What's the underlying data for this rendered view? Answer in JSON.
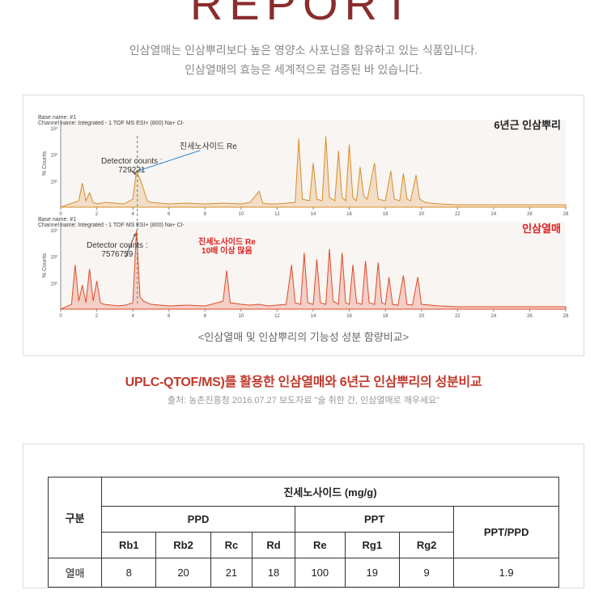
{
  "title_fragment": "REPORT",
  "intro_line1": "인삼열매는 인삼뿌리보다 높은 영양소 사포닌을 함유하고 있는 식품입니다.",
  "intro_line2": "인삼열매의 효능은 세계적으로 검증된 바 있습니다.",
  "chart": {
    "caption": "<인삼열매 및 인삼뿌리의 기능성 성분 함량비교>",
    "top": {
      "sample": "6년근 인삼뿌리",
      "detector_label": "Detector counts :",
      "detector_value": "729221",
      "anno": "진세노사이드 Re",
      "color": "#d98c2b",
      "series": [
        [
          0,
          0
        ],
        [
          1,
          8
        ],
        [
          1.2,
          30
        ],
        [
          1.4,
          8
        ],
        [
          1.6,
          18
        ],
        [
          1.8,
          6
        ],
        [
          2,
          4
        ],
        [
          2.5,
          6
        ],
        [
          3,
          5
        ],
        [
          3.5,
          4
        ],
        [
          4,
          10
        ],
        [
          4.2,
          45
        ],
        [
          4.4,
          35
        ],
        [
          4.6,
          22
        ],
        [
          4.8,
          8
        ],
        [
          5,
          6
        ],
        [
          5.5,
          5
        ],
        [
          6,
          4
        ],
        [
          7,
          5
        ],
        [
          8,
          4
        ],
        [
          9,
          5
        ],
        [
          10,
          4
        ],
        [
          10.5,
          6
        ],
        [
          11,
          20
        ],
        [
          11.2,
          5
        ],
        [
          11.5,
          4
        ],
        [
          12,
          4
        ],
        [
          12.5,
          5
        ],
        [
          13,
          6
        ],
        [
          13.2,
          85
        ],
        [
          13.4,
          10
        ],
        [
          13.8,
          8
        ],
        [
          14,
          55
        ],
        [
          14.2,
          10
        ],
        [
          14.5,
          8
        ],
        [
          14.7,
          88
        ],
        [
          14.9,
          12
        ],
        [
          15.2,
          8
        ],
        [
          15.4,
          70
        ],
        [
          15.6,
          12
        ],
        [
          15.8,
          8
        ],
        [
          16,
          78
        ],
        [
          16.2,
          12
        ],
        [
          16.4,
          8
        ],
        [
          16.6,
          50
        ],
        [
          16.8,
          14
        ],
        [
          17,
          10
        ],
        [
          17.4,
          55
        ],
        [
          17.6,
          10
        ],
        [
          18,
          8
        ],
        [
          18.3,
          45
        ],
        [
          18.5,
          10
        ],
        [
          18.8,
          8
        ],
        [
          19,
          42
        ],
        [
          19.2,
          10
        ],
        [
          19.4,
          8
        ],
        [
          19.7,
          40
        ],
        [
          19.9,
          10
        ],
        [
          20.2,
          6
        ],
        [
          20.5,
          5
        ],
        [
          21,
          4
        ],
        [
          22,
          3
        ],
        [
          24,
          3
        ],
        [
          26,
          3
        ],
        [
          28,
          3
        ]
      ]
    },
    "bottom": {
      "sample": "인삼열매",
      "detector_label": "Detector counts :",
      "detector_value": "7576759",
      "anno1": "진세노사이드 Re",
      "anno2": "10배 이상 많음",
      "color": "#e04a2a",
      "series": [
        [
          0,
          0
        ],
        [
          0.6,
          6
        ],
        [
          0.8,
          55
        ],
        [
          1,
          10
        ],
        [
          1.2,
          30
        ],
        [
          1.4,
          8
        ],
        [
          1.6,
          50
        ],
        [
          1.8,
          10
        ],
        [
          2,
          35
        ],
        [
          2.2,
          8
        ],
        [
          2.4,
          6
        ],
        [
          2.8,
          5
        ],
        [
          3.2,
          4
        ],
        [
          3.6,
          5
        ],
        [
          4,
          8
        ],
        [
          4.2,
          98
        ],
        [
          4.4,
          15
        ],
        [
          4.6,
          10
        ],
        [
          5,
          6
        ],
        [
          5.5,
          5
        ],
        [
          6,
          4
        ],
        [
          7,
          5
        ],
        [
          8,
          4
        ],
        [
          9,
          10
        ],
        [
          9.2,
          48
        ],
        [
          9.4,
          8
        ],
        [
          10,
          6
        ],
        [
          10.5,
          5
        ],
        [
          11,
          6
        ],
        [
          11.5,
          4
        ],
        [
          12,
          5
        ],
        [
          12.5,
          6
        ],
        [
          12.8,
          55
        ],
        [
          13,
          8
        ],
        [
          13.3,
          6
        ],
        [
          13.5,
          70
        ],
        [
          13.7,
          8
        ],
        [
          14,
          6
        ],
        [
          14.2,
          62
        ],
        [
          14.4,
          8
        ],
        [
          14.7,
          6
        ],
        [
          14.9,
          75
        ],
        [
          15.1,
          10
        ],
        [
          15.4,
          6
        ],
        [
          15.6,
          70
        ],
        [
          15.8,
          8
        ],
        [
          16,
          6
        ],
        [
          16.2,
          55
        ],
        [
          16.4,
          8
        ],
        [
          16.7,
          6
        ],
        [
          16.9,
          60
        ],
        [
          17.1,
          8
        ],
        [
          17.4,
          6
        ],
        [
          17.6,
          58
        ],
        [
          17.8,
          8
        ],
        [
          18,
          6
        ],
        [
          18.2,
          40
        ],
        [
          18.4,
          6
        ],
        [
          18.7,
          5
        ],
        [
          19,
          42
        ],
        [
          19.2,
          6
        ],
        [
          19.5,
          5
        ],
        [
          19.8,
          40
        ],
        [
          20,
          6
        ],
        [
          20.5,
          5
        ],
        [
          21,
          4
        ],
        [
          22,
          3
        ],
        [
          24,
          3
        ],
        [
          26,
          3
        ],
        [
          28,
          3
        ]
      ]
    },
    "x_max": 28,
    "ticks": [
      0,
      2,
      4,
      6,
      8,
      10,
      12,
      14,
      16,
      18,
      20,
      22,
      24,
      26,
      28
    ],
    "bg": "#f9f5f2",
    "axis_color": "#888888"
  },
  "highlight": "UPLC-QTOF/MS)를 활용한 인삼열매와 6년근 인삼뿌리의 성분비교",
  "source": "출처: 농촌진흥청 2016.07.27 보도자료 \"술 취한 간, 인삼열매로 깨우세요\"",
  "table": {
    "header_main": "진세노사이드 (mg/g)",
    "rowhead": "구분",
    "ppd": "PPD",
    "ppt": "PPT",
    "ratio": "PPT/PPD",
    "cols": [
      "Rb1",
      "Rb2",
      "Rc",
      "Rd",
      "Re",
      "Rg1",
      "Rg2"
    ],
    "row1_label": "열매",
    "row1": [
      "8",
      "20",
      "21",
      "18",
      "100",
      "19",
      "9",
      "1.9"
    ]
  }
}
